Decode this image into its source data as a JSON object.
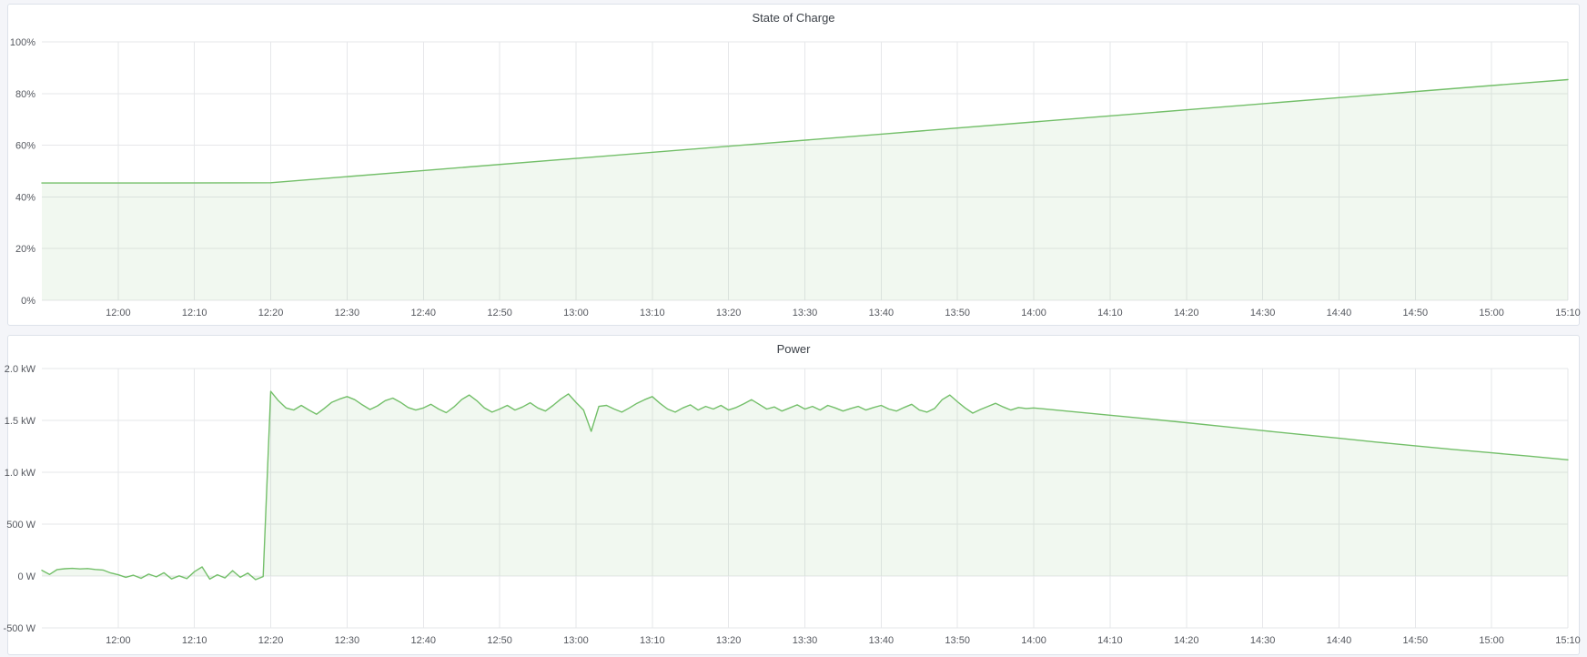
{
  "panels": [
    {
      "title": "State of Charge"
    },
    {
      "title": "Power"
    }
  ],
  "chart_data": [
    {
      "type": "area",
      "title": "State of Charge",
      "ylabel": "percent",
      "x_range": [
        710,
        910
      ],
      "y_range": [
        0,
        100
      ],
      "grid": true,
      "legend": "none",
      "color": "#73BF69",
      "fill": "rgba(115,191,105,0.10)",
      "y_ticks": [
        {
          "v": 0,
          "label": "0%"
        },
        {
          "v": 20,
          "label": "20%"
        },
        {
          "v": 40,
          "label": "40%"
        },
        {
          "v": 60,
          "label": "60%"
        },
        {
          "v": 80,
          "label": "80%"
        },
        {
          "v": 100,
          "label": "100%"
        }
      ],
      "x_ticks": [
        {
          "t": 720,
          "label": "12:00"
        },
        {
          "t": 730,
          "label": "12:10"
        },
        {
          "t": 740,
          "label": "12:20"
        },
        {
          "t": 750,
          "label": "12:30"
        },
        {
          "t": 760,
          "label": "12:40"
        },
        {
          "t": 770,
          "label": "12:50"
        },
        {
          "t": 780,
          "label": "13:00"
        },
        {
          "t": 790,
          "label": "13:10"
        },
        {
          "t": 800,
          "label": "13:20"
        },
        {
          "t": 810,
          "label": "13:30"
        },
        {
          "t": 820,
          "label": "13:40"
        },
        {
          "t": 830,
          "label": "13:50"
        },
        {
          "t": 840,
          "label": "14:00"
        },
        {
          "t": 850,
          "label": "14:10"
        },
        {
          "t": 860,
          "label": "14:20"
        },
        {
          "t": 870,
          "label": "14:30"
        },
        {
          "t": 880,
          "label": "14:40"
        },
        {
          "t": 890,
          "label": "14:50"
        },
        {
          "t": 900,
          "label": "15:00"
        },
        {
          "t": 910,
          "label": "15:10"
        }
      ],
      "series": {
        "name": "State of Charge",
        "baseline": 0,
        "points": [
          [
            710,
            45.4
          ],
          [
            725,
            45.4
          ],
          [
            740,
            45.5
          ],
          [
            760,
            50.2
          ],
          [
            780,
            54.9
          ],
          [
            800,
            59.6
          ],
          [
            820,
            64.3
          ],
          [
            840,
            69.0
          ],
          [
            860,
            73.7
          ],
          [
            880,
            78.4
          ],
          [
            900,
            83.1
          ],
          [
            910,
            85.4
          ]
        ]
      }
    },
    {
      "type": "area",
      "title": "Power",
      "ylabel": "watts",
      "x_range": [
        710,
        910
      ],
      "y_range": [
        -500,
        2000
      ],
      "grid": true,
      "legend": "none",
      "color": "#73BF69",
      "fill": "rgba(115,191,105,0.10)",
      "y_ticks": [
        {
          "v": -500,
          "label": "-500 W"
        },
        {
          "v": 0,
          "label": "0 W"
        },
        {
          "v": 500,
          "label": "500 W"
        },
        {
          "v": 1000,
          "label": "1.0 kW"
        },
        {
          "v": 1500,
          "label": "1.5 kW"
        },
        {
          "v": 2000,
          "label": "2.0 kW"
        }
      ],
      "x_ticks": [
        {
          "t": 720,
          "label": "12:00"
        },
        {
          "t": 730,
          "label": "12:10"
        },
        {
          "t": 740,
          "label": "12:20"
        },
        {
          "t": 750,
          "label": "12:30"
        },
        {
          "t": 760,
          "label": "12:40"
        },
        {
          "t": 770,
          "label": "12:50"
        },
        {
          "t": 780,
          "label": "13:00"
        },
        {
          "t": 790,
          "label": "13:10"
        },
        {
          "t": 800,
          "label": "13:20"
        },
        {
          "t": 810,
          "label": "13:30"
        },
        {
          "t": 820,
          "label": "13:40"
        },
        {
          "t": 830,
          "label": "13:50"
        },
        {
          "t": 840,
          "label": "14:00"
        },
        {
          "t": 850,
          "label": "14:10"
        },
        {
          "t": 860,
          "label": "14:20"
        },
        {
          "t": 870,
          "label": "14:30"
        },
        {
          "t": 880,
          "label": "14:40"
        },
        {
          "t": 890,
          "label": "14:50"
        },
        {
          "t": 900,
          "label": "15:00"
        },
        {
          "t": 910,
          "label": "15:10"
        }
      ],
      "series": {
        "name": "Power",
        "baseline": 0,
        "segments": [
          {
            "start": 710,
            "step": 1,
            "values": [
              55,
              15,
              62,
              70,
              74,
              68,
              72,
              63,
              58,
              30,
              12,
              -12,
              8,
              -22,
              18,
              -8,
              32,
              -28,
              2,
              -25,
              42,
              88,
              -30,
              12,
              -18,
              52,
              -12,
              28,
              -35,
              -5
            ]
          },
          {
            "start": 740,
            "step": 1,
            "values": [
              1780,
              1690,
              1620,
              1600,
              1645,
              1600,
              1560,
              1615,
              1675,
              1705,
              1730,
              1700,
              1650,
              1605,
              1640,
              1690,
              1715,
              1675,
              1625,
              1600,
              1620,
              1655,
              1610,
              1575,
              1630,
              1700,
              1745,
              1690,
              1620,
              1580,
              1610,
              1645,
              1600,
              1630,
              1670,
              1620,
              1590,
              1645,
              1705,
              1755,
              1675,
              1600,
              1395,
              1635,
              1645,
              1610,
              1580,
              1620,
              1665,
              1700,
              1730,
              1665,
              1610,
              1580,
              1620,
              1650,
              1600,
              1635,
              1610,
              1645,
              1600,
              1625,
              1660,
              1700,
              1655,
              1610,
              1630,
              1590,
              1620,
              1650,
              1610,
              1635,
              1600,
              1645,
              1620,
              1590,
              1615,
              1635,
              1600,
              1625,
              1645,
              1610,
              1590,
              1625,
              1655,
              1600,
              1580,
              1615,
              1700,
              1745,
              1680,
              1620,
              1570,
              1605,
              1635,
              1665,
              1630,
              1600,
              1625,
              1615
            ]
          },
          {
            "start": 840,
            "step": 5,
            "values": [
              1620,
              1585,
              1550,
              1515,
              1478,
              1440,
              1402,
              1365,
              1328,
              1290,
              1255,
              1220,
              1188,
              1155,
              1120
            ]
          }
        ]
      }
    }
  ]
}
